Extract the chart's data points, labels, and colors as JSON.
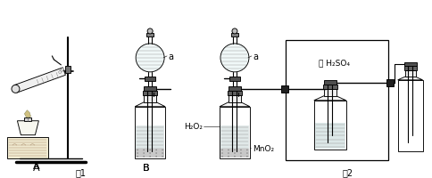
{
  "bg_color": "#ffffff",
  "fig1_label": "图1",
  "fig2_label": "图2",
  "label_A": "A",
  "label_B": "B",
  "label_a1": "a",
  "label_a2": "a",
  "label_H2O2": "H₂O₂",
  "label_MnO2": "MnO₂",
  "label_H2SO4": "浓 H₂SO₄",
  "lc": "#000000",
  "lw": 0.65,
  "gray_dark": "#505050",
  "gray_mid": "#909090",
  "gray_light": "#d8d8d8",
  "gray_neck": "#b0b0b0",
  "gray_solid": "#c0c0c0"
}
